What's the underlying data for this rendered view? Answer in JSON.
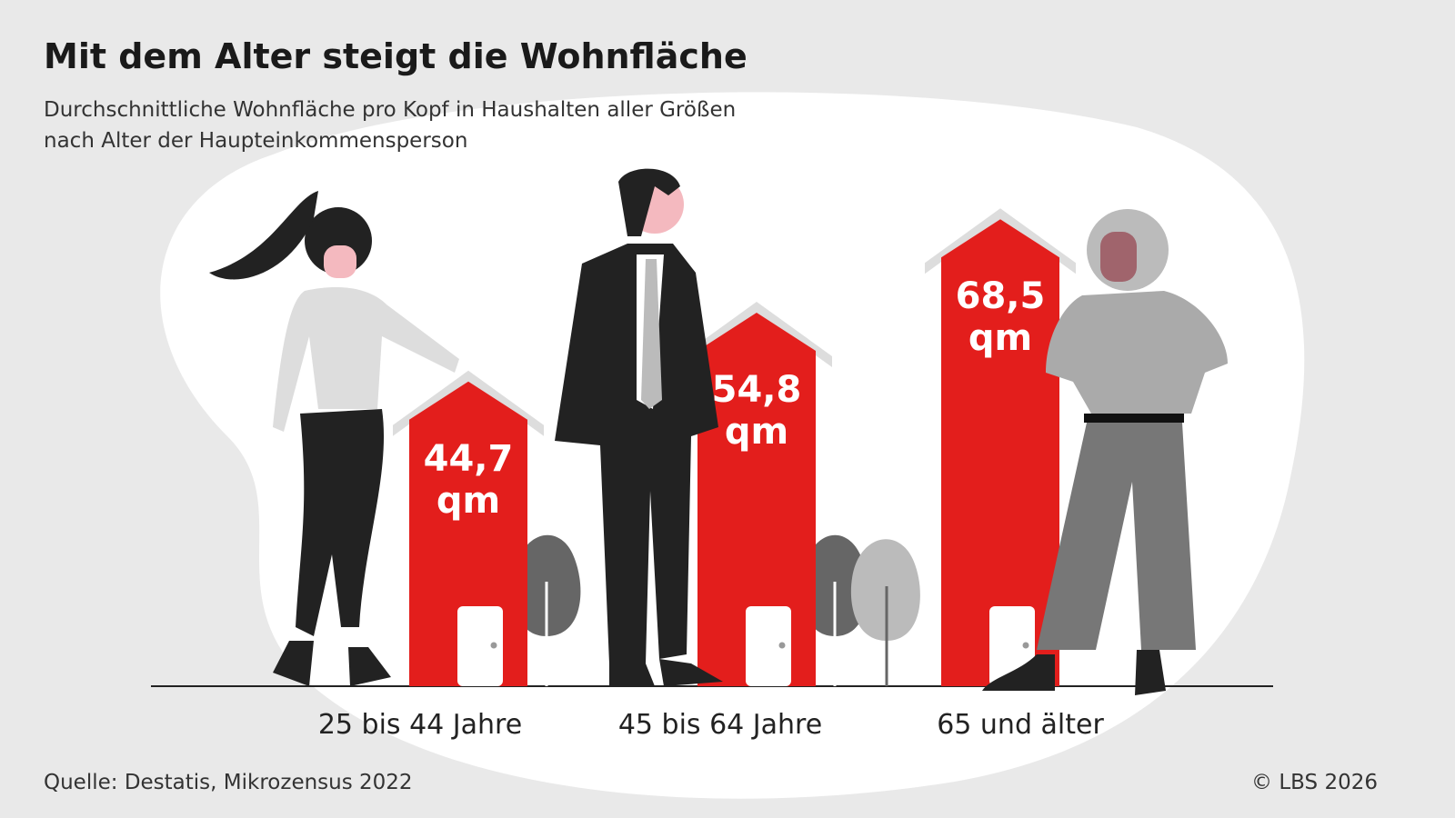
{
  "chart_data": {
    "type": "bar",
    "title": "Mit dem Alter steigt die Wohnfläche",
    "subtitle": [
      "Durchschnittliche Wohnfläche pro Kopf in Haushalten aller Größen",
      "nach Alter der Haupteinkommensperson"
    ],
    "categories": [
      "25 bis 44 Jahre",
      "45 bis 64 Jahre",
      "65 und älter"
    ],
    "values": [
      44.7,
      54.8,
      68.5
    ],
    "value_labels": [
      "44,7 qm",
      "54,8 qm",
      "68,5 qm"
    ],
    "color": "#e31e1c",
    "source": "Quelle: Destatis, Mikrozensus 2022",
    "copyright": "© LBS 2026"
  }
}
